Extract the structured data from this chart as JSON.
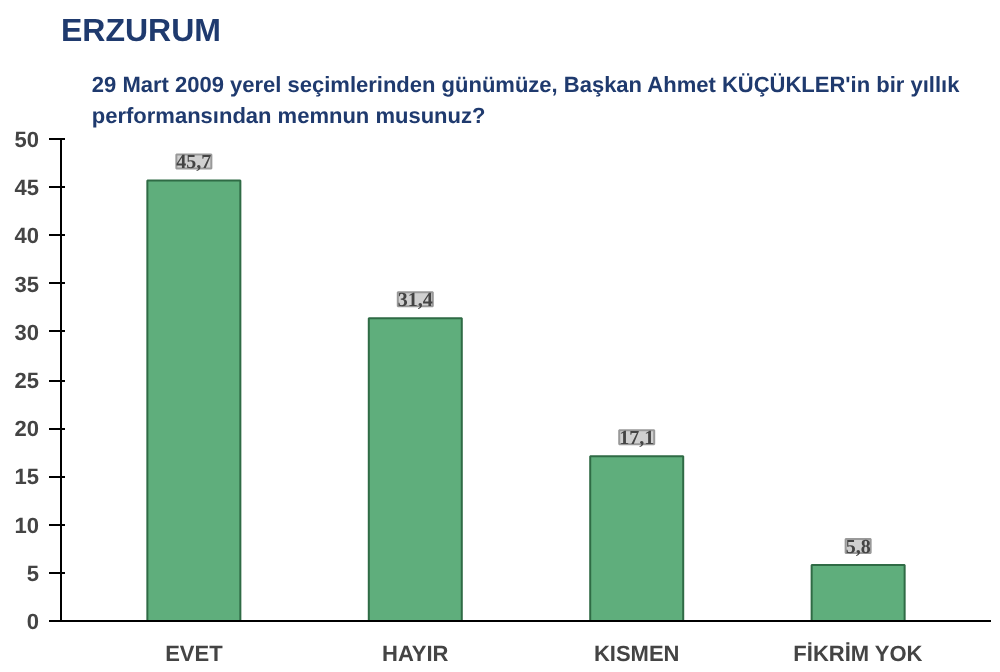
{
  "chart_data": {
    "type": "bar",
    "title": "ERZURUM",
    "subtitle": "29 Mart 2009 yerel seçimlerinden günümüze, Başkan Ahmet KÜÇÜKLER'in bir yıllık performansından memnun musunuz?",
    "categories": [
      "EVET",
      "HAYIR",
      "KISMEN",
      "FİKRİM YOK"
    ],
    "values": [
      45.7,
      31.4,
      17.1,
      5.8
    ],
    "value_labels": [
      "45,7",
      "31,4",
      "17,1",
      "5,8"
    ],
    "color": "#5fae7c",
    "ylim": [
      0,
      50
    ],
    "yticks": [
      0,
      5,
      10,
      15,
      20,
      25,
      30,
      35,
      40,
      45,
      50
    ],
    "grid": false
  }
}
